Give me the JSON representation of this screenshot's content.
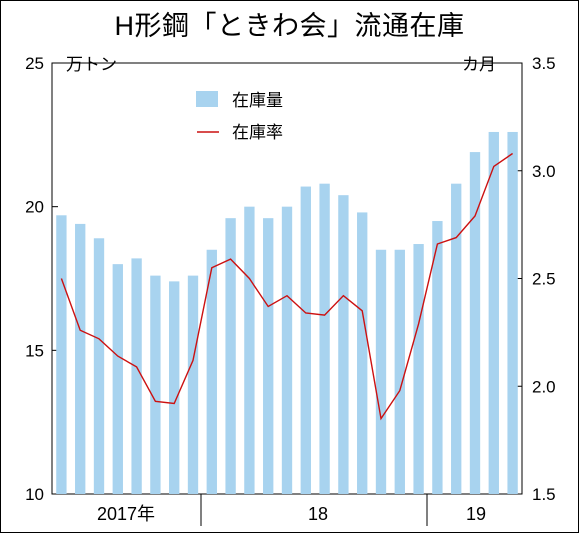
{
  "title": "H形鋼「ときわ会」流通在庫",
  "unit_left": "万トン",
  "unit_right": "カ月",
  "chart_data": {
    "type": "bar",
    "title": "H形鋼「ときわ会」流通在庫",
    "left_axis": {
      "unit": "万トン",
      "min": 10,
      "max": 25,
      "ticks": [
        "10",
        "15",
        "20",
        "25"
      ]
    },
    "right_axis": {
      "unit": "カ月",
      "min": 1.5,
      "max": 3.5,
      "ticks": [
        "1.5",
        "2.0",
        "2.5",
        "3.0",
        "3.5"
      ]
    },
    "x_labels": [
      "2017年",
      "18",
      "19"
    ],
    "legend": {
      "placement": "top-center",
      "entries": [
        "在庫量",
        "在庫率"
      ]
    },
    "colors": {
      "bar": "#a8d3ef",
      "line": "#cc1111"
    },
    "series": [
      {
        "name": "在庫量",
        "type": "bar",
        "axis": "left",
        "values": [
          19.7,
          19.4,
          18.9,
          18.0,
          18.2,
          17.6,
          17.4,
          17.6,
          18.5,
          19.6,
          20.0,
          19.6,
          20.0,
          20.7,
          20.8,
          20.4,
          19.8,
          18.5,
          18.5,
          18.7,
          19.5,
          20.8,
          21.9,
          22.6,
          22.6
        ]
      },
      {
        "name": "在庫率",
        "type": "line",
        "axis": "right",
        "values": [
          2.5,
          2.26,
          2.22,
          2.14,
          2.09,
          1.93,
          1.92,
          2.12,
          2.55,
          2.59,
          2.5,
          2.37,
          2.42,
          2.34,
          2.33,
          2.42,
          2.35,
          1.85,
          1.98,
          2.29,
          2.66,
          2.69,
          2.79,
          3.02,
          3.08
        ]
      }
    ]
  }
}
